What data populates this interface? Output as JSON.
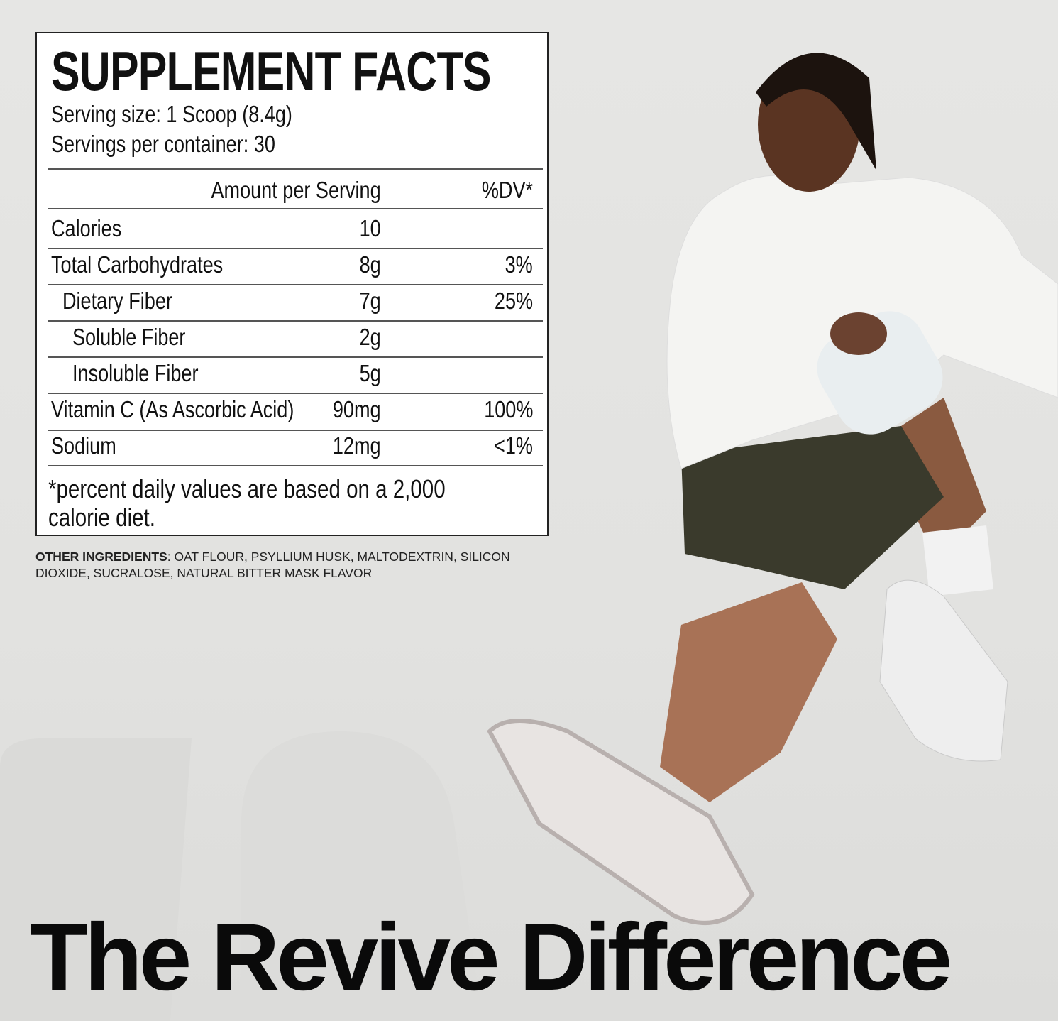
{
  "colors": {
    "background": "#e4e4e2",
    "label_bg": "#ffffff",
    "text": "#111111"
  },
  "facts": {
    "title": "SUPPLEMENT FACTS",
    "serving_size": "Serving size: 1 Scoop (8.4g)",
    "servings_per_container": "Servings per container: 30",
    "header_amount": "Amount per Serving",
    "header_dv": "%DV*",
    "rows": [
      {
        "name": "Calories",
        "amount": "10",
        "dv": ""
      },
      {
        "name": "Total Carbohydrates",
        "amount": "8g",
        "dv": "3%"
      },
      {
        "name": "Dietary Fiber",
        "amount": "7g",
        "dv": "25%"
      },
      {
        "name": "Soluble Fiber",
        "amount": "2g",
        "dv": ""
      },
      {
        "name": "Insoluble Fiber",
        "amount": "5g",
        "dv": ""
      },
      {
        "name": "Vitamin C (As Ascorbic Acid)",
        "amount": "90mg",
        "dv": "100%"
      },
      {
        "name": "Sodium",
        "amount": "12mg",
        "dv": "<1%"
      }
    ],
    "footnote": "*percent daily values are based on a 2,000 calorie diet."
  },
  "ingredients": {
    "label": "OTHER INGREDIENTS",
    "text": ": OAT FLOUR, PSYLLIUM HUSK, MALTODEXTRIN, SILICON DIOXIDE, SUCRALOSE, NATURAL BITTER MASK FLAVOR"
  },
  "headline": "The Revive Difference"
}
